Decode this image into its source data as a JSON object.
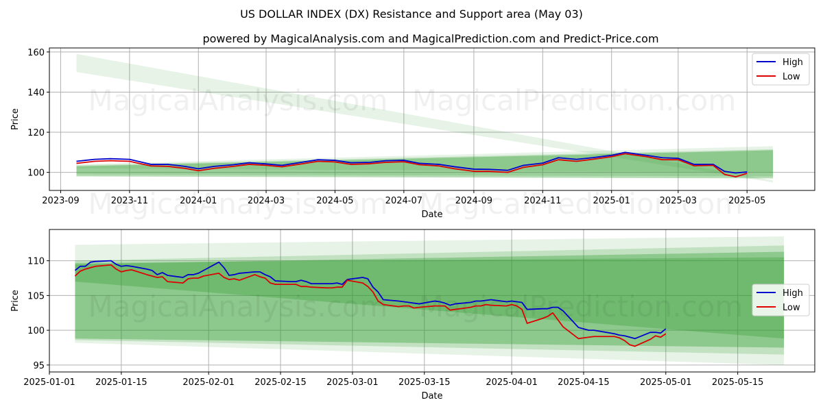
{
  "figure": {
    "title": "US DOLLAR INDEX (DX) Resistance and Support area (May 03)",
    "subtitle": "powered by MagicalAnalysis.com and MagicalPrediction.com and Predict-Price.com",
    "watermarks": [
      "MagicalAnalysis.com",
      "MagicalPrediction.com"
    ],
    "colors": {
      "high": "#0000cc",
      "low": "#dd0000",
      "band": "#2e9b2e"
    }
  },
  "chart_data": [
    {
      "type": "line",
      "xlabel": "Date",
      "ylabel": "Price",
      "x_type": "date",
      "xlim": [
        "2023-08-22",
        "2025-06-30"
      ],
      "ylim": [
        91,
        162
      ],
      "xticks": [
        "2023-09-01",
        "2023-11-01",
        "2024-01-01",
        "2024-03-01",
        "2024-05-01",
        "2024-07-01",
        "2024-09-01",
        "2024-11-01",
        "2025-01-01",
        "2025-03-01",
        "2025-05-01"
      ],
      "xtick_labels": [
        "2023-09",
        "2023-11",
        "2024-01",
        "2024-03",
        "2024-05",
        "2024-07",
        "2024-09",
        "2024-11",
        "2025-01",
        "2025-03",
        "2025-05"
      ],
      "yticks": [
        100,
        120,
        140,
        160
      ],
      "grid": true,
      "legend": {
        "position": "top-right",
        "entries": [
          "High",
          "Low"
        ]
      },
      "bands": [
        {
          "x": [
            "2023-09-15",
            "2025-05-24"
          ],
          "upper": [
            159,
            96
          ],
          "lower": [
            150,
            95
          ],
          "opacity": 0.12
        },
        {
          "x": [
            "2023-09-15",
            "2025-05-24"
          ],
          "upper": [
            103,
            111
          ],
          "lower": [
            98,
            97
          ],
          "opacity": 0.35
        },
        {
          "x": [
            "2023-09-15",
            "2025-05-24"
          ],
          "upper": [
            103.5,
            111.5
          ],
          "lower": [
            99,
            98
          ],
          "opacity": 0.2
        },
        {
          "x": [
            "2023-09-15",
            "2025-05-24"
          ],
          "upper": [
            104,
            113
          ],
          "lower": [
            102,
            100
          ],
          "opacity": 0.12
        }
      ],
      "series": [
        {
          "name": "High",
          "x": [
            "2023-09-15",
            "2023-10-01",
            "2023-10-15",
            "2023-11-01",
            "2023-11-20",
            "2023-12-05",
            "2023-12-20",
            "2024-01-01",
            "2024-01-15",
            "2024-02-01",
            "2024-02-15",
            "2024-03-01",
            "2024-03-15",
            "2024-04-01",
            "2024-04-16",
            "2024-05-01",
            "2024-05-15",
            "2024-06-01",
            "2024-06-15",
            "2024-07-01",
            "2024-07-15",
            "2024-08-01",
            "2024-08-15",
            "2024-09-01",
            "2024-09-15",
            "2024-10-01",
            "2024-10-15",
            "2024-11-01",
            "2024-11-15",
            "2024-12-01",
            "2024-12-15",
            "2025-01-01",
            "2025-01-13",
            "2025-02-01",
            "2025-02-15",
            "2025-03-01",
            "2025-03-15",
            "2025-04-01",
            "2025-04-11",
            "2025-04-21",
            "2025-05-01"
          ],
          "y": [
            105.5,
            106.5,
            106.8,
            106.5,
            104.0,
            104.0,
            103.0,
            101.8,
            103.0,
            103.8,
            104.8,
            104.2,
            103.5,
            105.0,
            106.3,
            106.0,
            104.8,
            105.0,
            105.8,
            106.0,
            104.5,
            104.0,
            102.8,
            101.6,
            101.5,
            101.0,
            103.5,
            104.6,
            107.3,
            106.5,
            107.3,
            108.5,
            110.0,
            108.5,
            107.3,
            107.0,
            104.0,
            104.0,
            100.5,
            99.7,
            100.2
          ]
        },
        {
          "name": "Low",
          "x": [
            "2023-09-15",
            "2023-10-01",
            "2023-10-15",
            "2023-11-01",
            "2023-11-20",
            "2023-12-05",
            "2023-12-20",
            "2024-01-01",
            "2024-01-15",
            "2024-02-01",
            "2024-02-15",
            "2024-03-01",
            "2024-03-15",
            "2024-04-01",
            "2024-04-16",
            "2024-05-01",
            "2024-05-15",
            "2024-06-01",
            "2024-06-15",
            "2024-07-01",
            "2024-07-15",
            "2024-08-01",
            "2024-08-15",
            "2024-09-01",
            "2024-09-15",
            "2024-10-01",
            "2024-10-15",
            "2024-11-01",
            "2024-11-15",
            "2024-12-01",
            "2024-12-15",
            "2025-01-01",
            "2025-01-13",
            "2025-02-01",
            "2025-02-15",
            "2025-03-01",
            "2025-03-15",
            "2025-04-01",
            "2025-04-11",
            "2025-04-21",
            "2025-05-01"
          ],
          "y": [
            104.5,
            105.5,
            105.8,
            105.5,
            103.2,
            103.0,
            102.0,
            100.8,
            102.0,
            103.0,
            104.0,
            103.5,
            102.8,
            104.2,
            105.5,
            105.2,
            104.0,
            104.3,
            105.0,
            105.3,
            103.8,
            103.2,
            101.8,
            100.5,
            100.5,
            100.0,
            102.5,
            103.8,
            106.3,
            105.5,
            106.5,
            107.8,
            109.3,
            107.8,
            106.3,
            106.3,
            103.3,
            103.5,
            99.0,
            97.8,
            99.5
          ]
        }
      ]
    },
    {
      "type": "line",
      "xlabel": "Date",
      "ylabel": "Price",
      "x_type": "date",
      "xlim": [
        "2025-01-01",
        "2025-05-30"
      ],
      "ylim": [
        94,
        114.5
      ],
      "xticks": [
        "2025-01-01",
        "2025-01-15",
        "2025-02-01",
        "2025-02-15",
        "2025-03-01",
        "2025-03-15",
        "2025-04-01",
        "2025-04-15",
        "2025-05-01",
        "2025-05-15"
      ],
      "xtick_labels": [
        "2025-01-01",
        "2025-01-15",
        "2025-02-01",
        "2025-02-15",
        "2025-03-01",
        "2025-03-15",
        "2025-04-01",
        "2025-04-15",
        "2025-05-01",
        "2025-05-15"
      ],
      "yticks": [
        95,
        100,
        105,
        110
      ],
      "grid": true,
      "legend": {
        "position": "center-right",
        "entries": [
          "High",
          "Low"
        ]
      },
      "bands": [
        {
          "x": [
            "2025-01-06",
            "2025-05-24"
          ],
          "upper": [
            112.3,
            113.5
          ],
          "lower": [
            98.2,
            95.0
          ],
          "opacity": 0.12
        },
        {
          "x": [
            "2025-01-06",
            "2025-05-24"
          ],
          "upper": [
            110.0,
            112.2
          ],
          "lower": [
            98.6,
            96.5
          ],
          "opacity": 0.2
        },
        {
          "x": [
            "2025-01-06",
            "2025-05-24"
          ],
          "upper": [
            109.5,
            111.3
          ],
          "lower": [
            98.8,
            97.5
          ],
          "opacity": 0.35
        },
        {
          "x": [
            "2025-01-06",
            "2025-05-24"
          ],
          "upper": [
            109.7,
            110.5
          ],
          "lower": [
            107.0,
            98.8
          ],
          "opacity": 0.3
        }
      ],
      "series": [
        {
          "name": "High",
          "x": [
            "2025-01-06",
            "2025-01-07",
            "2025-01-08",
            "2025-01-09",
            "2025-01-10",
            "2025-01-13",
            "2025-01-14",
            "2025-01-15",
            "2025-01-16",
            "2025-01-17",
            "2025-01-20",
            "2025-01-21",
            "2025-01-22",
            "2025-01-23",
            "2025-01-24",
            "2025-01-27",
            "2025-01-28",
            "2025-01-29",
            "2025-01-30",
            "2025-01-31",
            "2025-02-03",
            "2025-02-04",
            "2025-02-05",
            "2025-02-06",
            "2025-02-07",
            "2025-02-10",
            "2025-02-11",
            "2025-02-12",
            "2025-02-13",
            "2025-02-14",
            "2025-02-17",
            "2025-02-18",
            "2025-02-19",
            "2025-02-20",
            "2025-02-21",
            "2025-02-24",
            "2025-02-25",
            "2025-02-26",
            "2025-02-27",
            "2025-02-28",
            "2025-03-03",
            "2025-03-04",
            "2025-03-05",
            "2025-03-06",
            "2025-03-07",
            "2025-03-10",
            "2025-03-11",
            "2025-03-12",
            "2025-03-13",
            "2025-03-14",
            "2025-03-17",
            "2025-03-18",
            "2025-03-19",
            "2025-03-20",
            "2025-03-21",
            "2025-03-24",
            "2025-03-25",
            "2025-03-26",
            "2025-03-27",
            "2025-03-28",
            "2025-03-31",
            "2025-04-01",
            "2025-04-02",
            "2025-04-03",
            "2025-04-04",
            "2025-04-07",
            "2025-04-08",
            "2025-04-09",
            "2025-04-10",
            "2025-04-11",
            "2025-04-14",
            "2025-04-15",
            "2025-04-16",
            "2025-04-17",
            "2025-04-21",
            "2025-04-22",
            "2025-04-23",
            "2025-04-24",
            "2025-04-25",
            "2025-04-28",
            "2025-04-29",
            "2025-04-30",
            "2025-05-01"
          ],
          "y": [
            108.6,
            109.2,
            109.2,
            109.8,
            109.9,
            110.0,
            109.5,
            109.2,
            109.3,
            109.2,
            108.8,
            108.6,
            108.0,
            108.3,
            107.9,
            107.6,
            108.0,
            108.0,
            108.2,
            108.6,
            109.8,
            109.0,
            107.9,
            108.0,
            108.2,
            108.4,
            108.4,
            108.0,
            107.7,
            107.1,
            107.0,
            107.0,
            107.2,
            107.0,
            106.7,
            106.7,
            106.7,
            106.8,
            106.6,
            107.3,
            107.6,
            107.4,
            106.2,
            105.5,
            104.4,
            104.2,
            104.1,
            104.0,
            103.9,
            103.8,
            104.2,
            104.1,
            103.9,
            103.6,
            103.8,
            104.0,
            104.2,
            104.2,
            104.3,
            104.4,
            104.1,
            104.2,
            104.1,
            104.0,
            103.0,
            103.1,
            103.1,
            103.3,
            103.3,
            102.8,
            100.4,
            100.2,
            100.0,
            100.0,
            99.5,
            99.3,
            99.2,
            99.0,
            98.8,
            99.7,
            99.7,
            99.6,
            100.2
          ]
        },
        {
          "name": "Low",
          "x": [
            "2025-01-06",
            "2025-01-07",
            "2025-01-08",
            "2025-01-09",
            "2025-01-10",
            "2025-01-13",
            "2025-01-14",
            "2025-01-15",
            "2025-01-16",
            "2025-01-17",
            "2025-01-20",
            "2025-01-21",
            "2025-01-22",
            "2025-01-23",
            "2025-01-24",
            "2025-01-27",
            "2025-01-28",
            "2025-01-29",
            "2025-01-30",
            "2025-01-31",
            "2025-02-03",
            "2025-02-04",
            "2025-02-05",
            "2025-02-06",
            "2025-02-07",
            "2025-02-10",
            "2025-02-11",
            "2025-02-12",
            "2025-02-13",
            "2025-02-14",
            "2025-02-17",
            "2025-02-18",
            "2025-02-19",
            "2025-02-20",
            "2025-02-21",
            "2025-02-24",
            "2025-02-25",
            "2025-02-26",
            "2025-02-27",
            "2025-02-28",
            "2025-03-03",
            "2025-03-04",
            "2025-03-05",
            "2025-03-06",
            "2025-03-07",
            "2025-03-10",
            "2025-03-11",
            "2025-03-12",
            "2025-03-13",
            "2025-03-14",
            "2025-03-17",
            "2025-03-18",
            "2025-03-19",
            "2025-03-20",
            "2025-03-21",
            "2025-03-24",
            "2025-03-25",
            "2025-03-26",
            "2025-03-27",
            "2025-03-28",
            "2025-03-31",
            "2025-04-01",
            "2025-04-02",
            "2025-04-03",
            "2025-04-04",
            "2025-04-07",
            "2025-04-08",
            "2025-04-09",
            "2025-04-10",
            "2025-04-11",
            "2025-04-14",
            "2025-04-15",
            "2025-04-16",
            "2025-04-17",
            "2025-04-21",
            "2025-04-22",
            "2025-04-23",
            "2025-04-24",
            "2025-04-25",
            "2025-04-28",
            "2025-04-29",
            "2025-04-30",
            "2025-05-01"
          ],
          "y": [
            107.8,
            108.5,
            108.8,
            109.0,
            109.2,
            109.4,
            108.8,
            108.4,
            108.6,
            108.7,
            108.0,
            107.8,
            107.6,
            107.7,
            107.0,
            106.8,
            107.4,
            107.5,
            107.5,
            107.8,
            108.2,
            107.6,
            107.3,
            107.4,
            107.2,
            108.0,
            107.7,
            107.5,
            106.8,
            106.6,
            106.6,
            106.6,
            106.3,
            106.3,
            106.2,
            106.1,
            106.1,
            106.2,
            106.2,
            107.2,
            106.8,
            106.3,
            105.5,
            104.2,
            103.7,
            103.4,
            103.5,
            103.5,
            103.2,
            103.3,
            103.5,
            103.5,
            103.5,
            102.9,
            103.0,
            103.3,
            103.5,
            103.5,
            103.7,
            103.6,
            103.5,
            103.7,
            103.5,
            103.0,
            101.0,
            101.7,
            102.0,
            102.5,
            101.5,
            100.5,
            98.8,
            98.9,
            99.0,
            99.1,
            99.1,
            98.9,
            98.5,
            97.9,
            97.7,
            98.7,
            99.2,
            99.0,
            99.5
          ]
        }
      ]
    }
  ]
}
